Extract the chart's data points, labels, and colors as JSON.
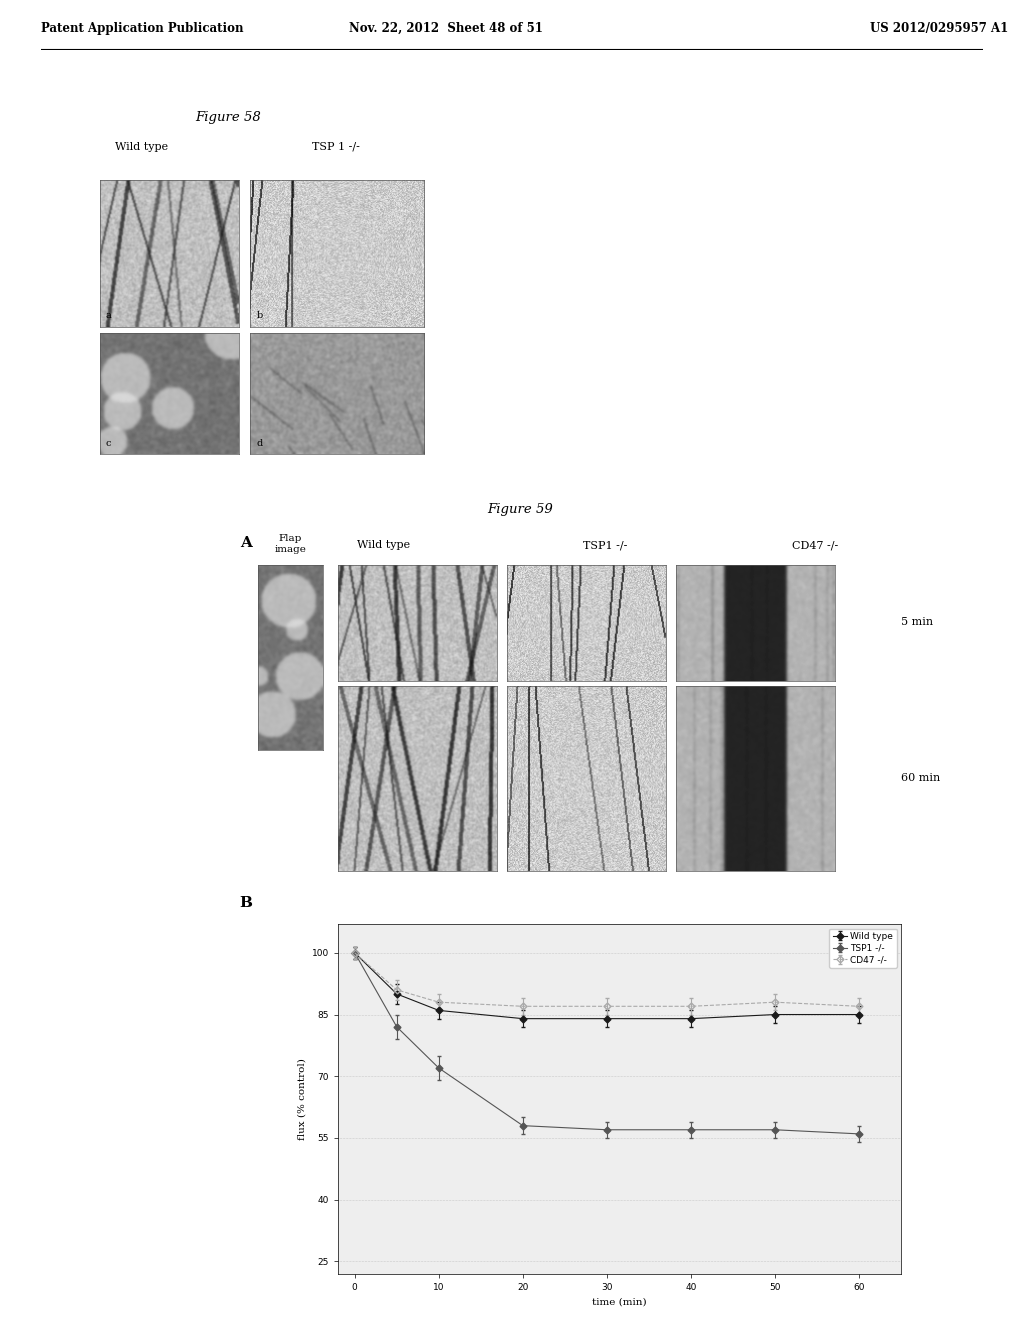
{
  "header_left": "Patent Application Publication",
  "header_middle": "Nov. 22, 2012  Sheet 48 of 51",
  "header_right": "US 2012/0295957 A1",
  "figure58_title": "Figure 58",
  "fig58_label_wildtype": "Wild type",
  "fig58_label_tsp": "TSP 1 -/-",
  "fig58_panel_labels": [
    "a",
    "b",
    "c",
    "d"
  ],
  "figure59_title": "Figure 59",
  "figure59_panel_a": "A",
  "figure59_panel_b": "B",
  "figure59_col_labels": [
    "Wild type",
    "TSP1 -/-",
    "CD47 -/-"
  ],
  "figure59_flap_label": "Flap\nimage",
  "figure59_time_labels": [
    "5 min",
    "60 min"
  ],
  "graph_xlabel": "time (min)",
  "graph_ylabel": "flux (% control)",
  "graph_yticks": [
    25,
    40,
    55,
    70,
    85,
    100
  ],
  "graph_xticks": [
    0,
    10,
    20,
    30,
    40,
    50,
    60
  ],
  "graph_ylim": [
    22,
    107
  ],
  "graph_xlim": [
    -2,
    65
  ],
  "legend_labels": [
    "Wild type",
    "TSP1 -/-",
    "CD47 -/-"
  ],
  "series_wild_type_x": [
    0,
    5,
    10,
    20,
    30,
    40,
    50,
    60
  ],
  "series_wild_type_y": [
    100,
    90,
    86,
    84,
    84,
    84,
    85,
    85
  ],
  "series_wild_type_yerr": [
    1.5,
    2.5,
    2,
    2,
    2,
    2,
    2,
    2
  ],
  "series_tsp1_x": [
    0,
    5,
    10,
    20,
    30,
    40,
    50,
    60
  ],
  "series_tsp1_y": [
    100,
    82,
    72,
    58,
    57,
    57,
    57,
    56
  ],
  "series_tsp1_yerr": [
    1.5,
    3,
    3,
    2,
    2,
    2,
    2,
    2
  ],
  "series_cd47_x": [
    0,
    5,
    10,
    20,
    30,
    40,
    50,
    60
  ],
  "series_cd47_y": [
    100,
    91,
    88,
    87,
    87,
    87,
    88,
    87
  ],
  "series_cd47_yerr": [
    1.5,
    2.5,
    2,
    2,
    2,
    2,
    2,
    2
  ],
  "color_dark": "#1a1a1a",
  "color_mid": "#555555",
  "color_light": "#aaaaaa",
  "bg_color": "#ffffff",
  "fig_width": 10.24,
  "fig_height": 13.2,
  "dpi": 100
}
